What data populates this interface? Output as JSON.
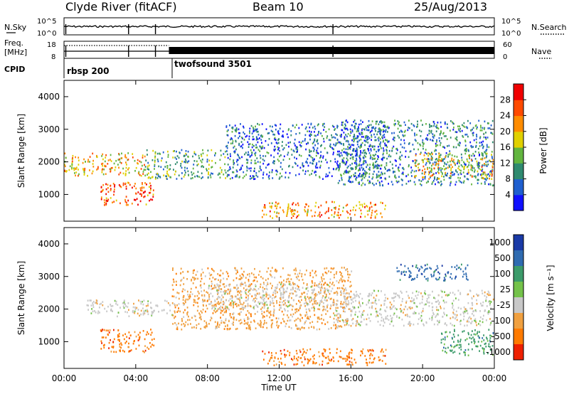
{
  "header": {
    "station": "Clyde River (fitACF)",
    "beam": "Beam 10",
    "date": "25/Aug/2013"
  },
  "top_panels": {
    "nsky_label": "N.Sky",
    "nsearch_label": "N.Search",
    "freq_label_1": "Freq.",
    "freq_label_2": "[MHz]",
    "nave_label": "Nave",
    "cpid_label": "CPID",
    "nsky_ticks": [
      "10^5",
      "10^0"
    ],
    "nsearch_ticks": [
      "10^5",
      "10^0"
    ],
    "freq_ticks": [
      "18",
      "8"
    ],
    "nave_ticks": [
      "60",
      "0"
    ],
    "cpid_modes": [
      {
        "name": "rbsp 200",
        "start_hour": 0
      },
      {
        "name": "twofsound 3501",
        "start_hour": 5.85
      }
    ]
  },
  "time_axis": {
    "label": "Time UT",
    "ticks": [
      "00:00",
      "04:00",
      "08:00",
      "12:00",
      "16:00",
      "20:00",
      "00:00"
    ]
  },
  "chart_data": [
    {
      "type": "heatmap",
      "quantity": "Power",
      "ylabel": "Slant Range [km]",
      "xlabel": "",
      "xlim": [
        0,
        24
      ],
      "ylim": [
        180,
        4500
      ],
      "yticks": [
        "1000",
        "2000",
        "3000",
        "4000"
      ],
      "colorbar": {
        "label": "Power [dB]",
        "ticks": [
          "4",
          "8",
          "12",
          "16",
          "20",
          "24",
          "28"
        ],
        "range": [
          0,
          32
        ],
        "colors": [
          "#1010ff",
          "#1f5fcf",
          "#2f8a6f",
          "#62b53f",
          "#e0d000",
          "#ff8c00",
          "#ff4a00",
          "#f00000"
        ]
      },
      "regions": [
        {
          "x0": 0.0,
          "x1": 4.5,
          "y0": 1600,
          "y1": 2300,
          "level": 20
        },
        {
          "x0": 2.0,
          "x1": 5.0,
          "y0": 700,
          "y1": 1400,
          "level": 26
        },
        {
          "x0": 4.5,
          "x1": 9.0,
          "y0": 1500,
          "y1": 2400,
          "level": 12
        },
        {
          "x0": 9.0,
          "x1": 18.0,
          "y0": 1500,
          "y1": 3200,
          "level": 7
        },
        {
          "x0": 11.0,
          "x1": 18.0,
          "y0": 300,
          "y1": 800,
          "level": 22
        },
        {
          "x0": 15.0,
          "x1": 24.0,
          "y0": 1300,
          "y1": 3300,
          "level": 9
        },
        {
          "x0": 19.5,
          "x1": 24.0,
          "y0": 1500,
          "y1": 2300,
          "level": 18
        }
      ]
    },
    {
      "type": "heatmap",
      "quantity": "Velocity",
      "ylabel": "Slant Range [km]",
      "xlabel": "Time UT",
      "xlim": [
        0,
        24
      ],
      "ylim": [
        180,
        4500
      ],
      "yticks": [
        "1000",
        "2000",
        "3000",
        "4000"
      ],
      "colorbar": {
        "label": "Velocity [m s⁻¹]",
        "ticks": [
          "1000",
          "500",
          "100",
          "25",
          "-25",
          "-100",
          "-500",
          "-1000"
        ],
        "colors": [
          "#1a3aa6",
          "#2f6bb0",
          "#3c9b6a",
          "#74c24a",
          "#c8c8c8",
          "#f0a040",
          "#ff7a00",
          "#ee2000"
        ]
      },
      "regions": [
        {
          "x0": 1.0,
          "x1": 6.0,
          "y0": 1800,
          "y1": 2300,
          "level": 4
        },
        {
          "x0": 2.0,
          "x1": 5.0,
          "y0": 700,
          "y1": 1400,
          "level": 6
        },
        {
          "x0": 6.0,
          "x1": 16.0,
          "y0": 1400,
          "y1": 3300,
          "level": 5
        },
        {
          "x0": 8.0,
          "x1": 15.0,
          "y0": 2000,
          "y1": 2800,
          "level": 4
        },
        {
          "x0": 11.0,
          "x1": 18.0,
          "y0": 300,
          "y1": 800,
          "level": 6
        },
        {
          "x0": 15.0,
          "x1": 24.0,
          "y0": 1500,
          "y1": 2600,
          "level": 4
        },
        {
          "x0": 18.5,
          "x1": 22.5,
          "y0": 2900,
          "y1": 3400,
          "level": 1
        },
        {
          "x0": 21.0,
          "x1": 24.0,
          "y0": 600,
          "y1": 1400,
          "level": 2
        }
      ]
    }
  ]
}
